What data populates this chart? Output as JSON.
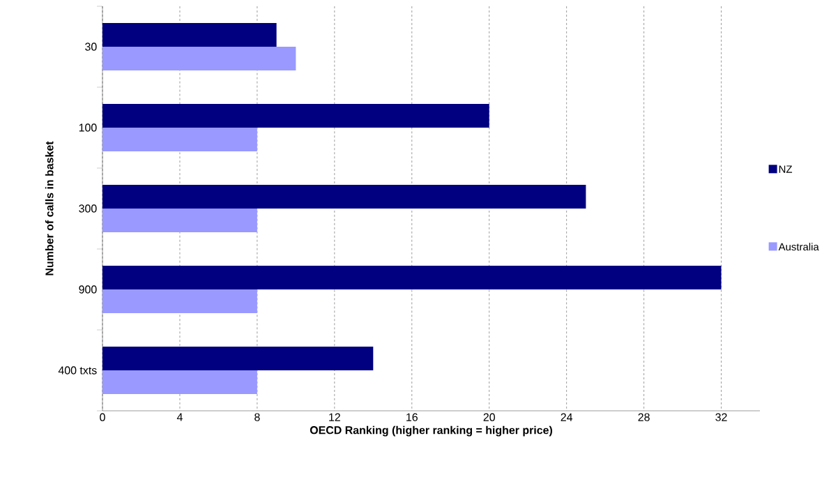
{
  "chart_data": {
    "type": "bar",
    "orientation": "horizontal",
    "categories": [
      "30",
      "100",
      "300",
      "900",
      "400 txts"
    ],
    "series": [
      {
        "name": "NZ",
        "color": "#000080",
        "values": [
          9,
          20,
          25,
          32,
          14
        ]
      },
      {
        "name": "Australia",
        "color": "#9999ff",
        "values": [
          10,
          8,
          8,
          8,
          8
        ]
      }
    ],
    "xlabel": "OECD Ranking (higher ranking = higher price)",
    "ylabel": "Number of calls in basket",
    "xlim": [
      0,
      34
    ],
    "xticks": [
      0,
      4,
      8,
      12,
      16,
      20,
      24,
      28,
      32
    ],
    "grid": "x",
    "legend": "right"
  }
}
